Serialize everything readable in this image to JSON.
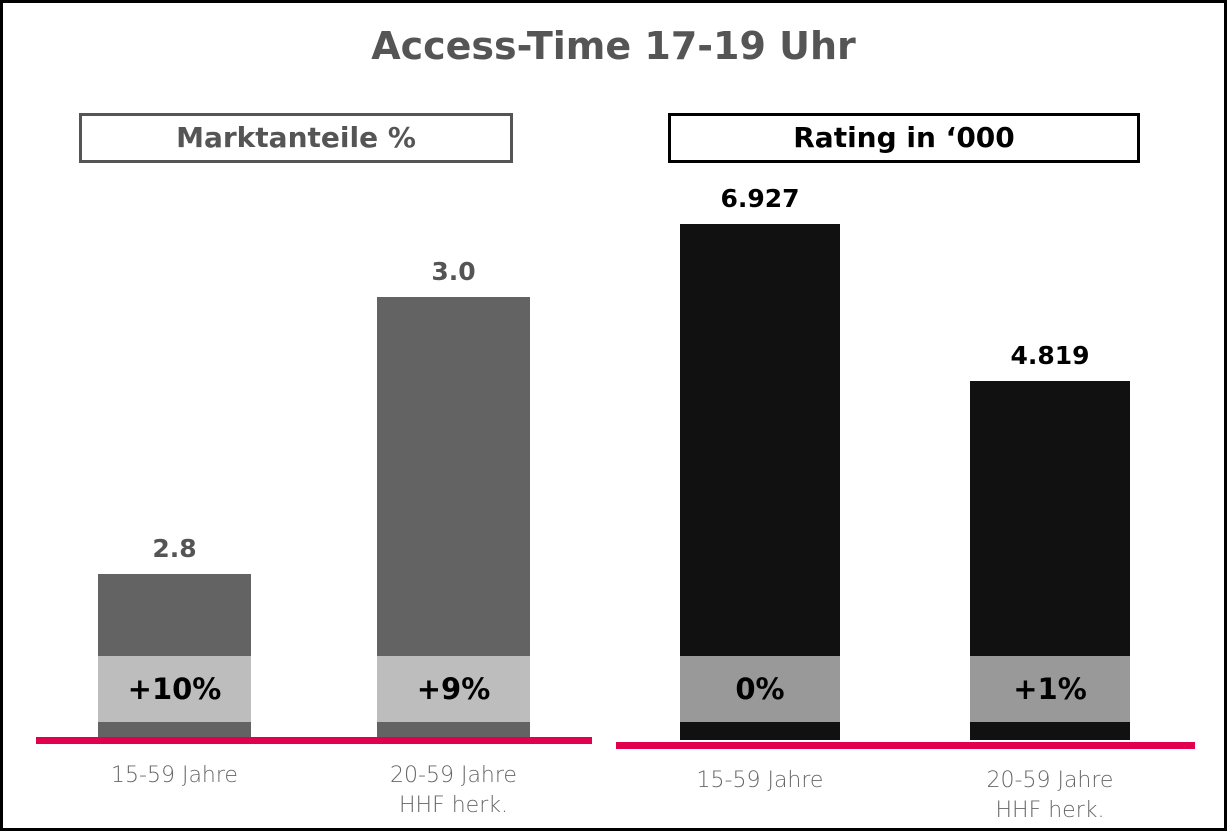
{
  "title": "Access-Time 17-19 Uhr",
  "chart_data": [
    {
      "type": "bar",
      "title": "Marktanteile %",
      "categories": [
        "15-59 Jahre",
        "20-59 Jahre\nHHF herk."
      ],
      "values": [
        2.8,
        3.0
      ],
      "value_labels": [
        "2.8",
        "3.0"
      ],
      "color": "#636363",
      "title_color": "#555555",
      "changes": [
        "+10%",
        "+9%"
      ],
      "change_color": "#bdbdbd",
      "ylim": [
        2.68,
        3.07
      ]
    },
    {
      "type": "bar",
      "title": "Rating in ‘000",
      "categories": [
        "15-59 Jahre",
        "20-59 Jahre\nHHF herk."
      ],
      "values": [
        6.927,
        4.819
      ],
      "color": "#111111",
      "title_color": "#000000",
      "changes": [
        "0%",
        "+1%"
      ],
      "change_color": "#999999",
      "ylim": [
        0,
        7.25
      ]
    }
  ]
}
